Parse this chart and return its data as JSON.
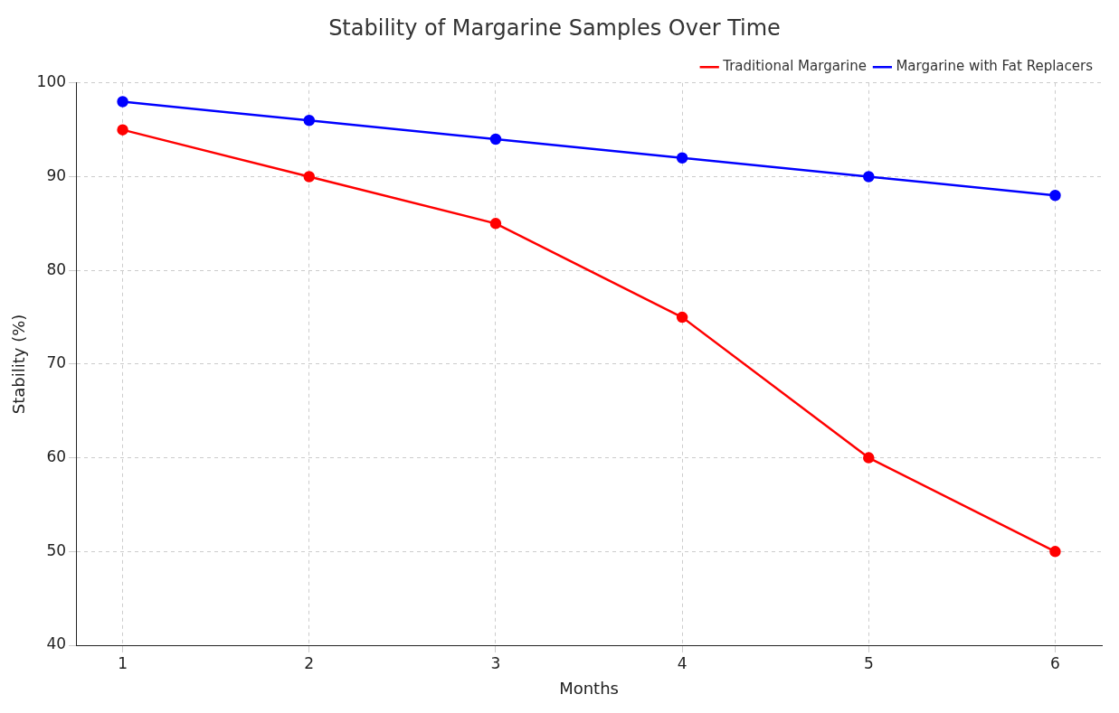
{
  "chart_data": {
    "type": "line",
    "title": "Stability of Margarine Samples Over Time",
    "xlabel": "Months",
    "ylabel": "Stability (%)",
    "x": [
      1,
      2,
      3,
      4,
      5,
      6
    ],
    "series": [
      {
        "name": "Traditional Margarine",
        "color": "#ff0000",
        "values": [
          95,
          90,
          85,
          75,
          60,
          50
        ]
      },
      {
        "name": "Margarine with Fat Replacers",
        "color": "#0000ff",
        "values": [
          98,
          96,
          94,
          92,
          90,
          88
        ]
      }
    ],
    "xlim": [
      0.75,
      6.25
    ],
    "xticks": [
      1,
      2,
      3,
      4,
      5,
      6
    ],
    "ylim": [
      40,
      100
    ],
    "yticks": [
      40,
      50,
      60,
      70,
      80,
      90,
      100
    ],
    "grid": true,
    "legend": "top right",
    "marker": "circle",
    "line_style": "solid"
  }
}
